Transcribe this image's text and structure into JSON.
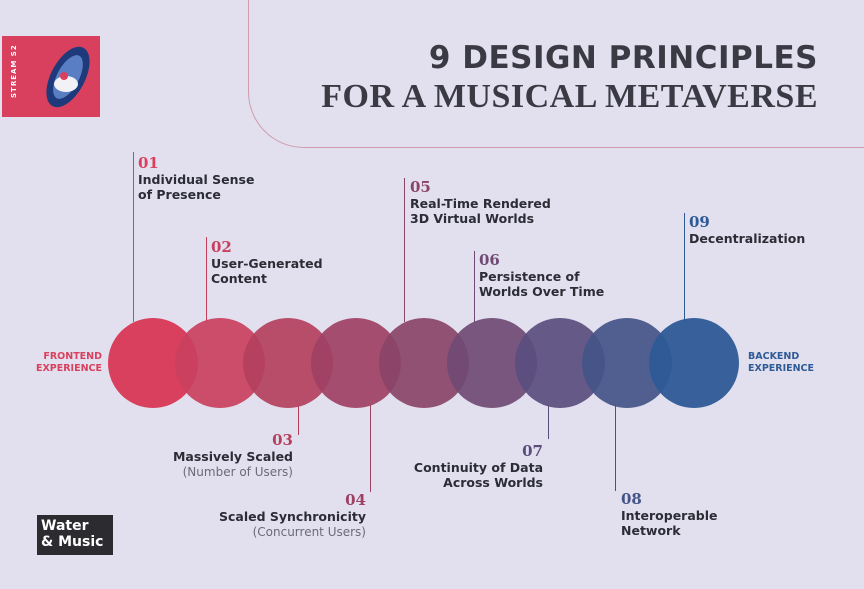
{
  "badge": {
    "text": "STREAM S2"
  },
  "title": {
    "line1": "9 DESIGN PRINCIPLES",
    "line2": "FOR A MUSICAL METAVERSE"
  },
  "axis": {
    "left_label": "FRONTEND\nEXPERIENCE",
    "right_label": "BACKEND\nEXPERIENCE",
    "left_color": "#d9405e",
    "right_color": "#2e5a96"
  },
  "principles": [
    {
      "num": "01",
      "label": "Individual Sense\nof Presence",
      "sub": "",
      "color": "#d9405e"
    },
    {
      "num": "02",
      "label": "User-Generated\nContent",
      "sub": "",
      "color": "#c9405e"
    },
    {
      "num": "03",
      "label": "Massively Scaled",
      "sub": "(Number of Users)",
      "color": "#b4405e"
    },
    {
      "num": "04",
      "label": "Scaled Synchronicity",
      "sub": "(Concurrent Users)",
      "color": "#9e4063"
    },
    {
      "num": "05",
      "label": "Real-Time Rendered\n3D Virtual Worlds",
      "sub": "",
      "color": "#8a4468"
    },
    {
      "num": "06",
      "label": "Persistence of\nWorlds Over Time",
      "sub": "",
      "color": "#704a74"
    },
    {
      "num": "07",
      "label": "Continuity of Data\nAcross Worlds",
      "sub": "",
      "color": "#5a4d7e"
    },
    {
      "num": "08",
      "label": "Interoperable\nNetwork",
      "sub": "",
      "color": "#445488"
    },
    {
      "num": "09",
      "label": "Decentralization",
      "sub": "",
      "color": "#2e5a96"
    }
  ],
  "logo": {
    "text": "Water\n& Music"
  }
}
